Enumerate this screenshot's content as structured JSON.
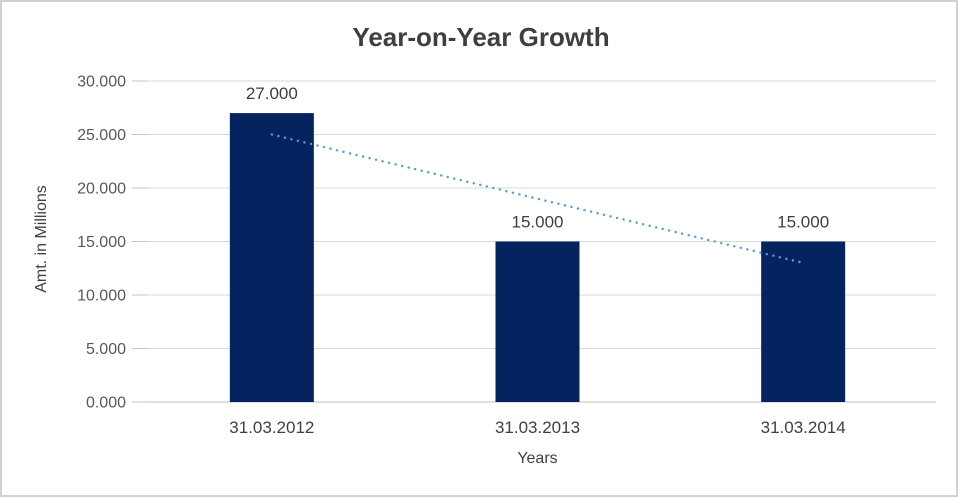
{
  "chart_data": {
    "type": "bar",
    "title": "Year-on-Year Growth",
    "xlabel": "Years",
    "ylabel": "Amt. in Millions",
    "categories": [
      "31.03.2012",
      "31.03.2013",
      "31.03.2014"
    ],
    "values": [
      27,
      15,
      15
    ],
    "data_labels": [
      "27.000",
      "15.000",
      "15.000"
    ],
    "ylim": [
      0,
      30
    ],
    "ytick_step": 5,
    "ytick_labels": [
      "0.000",
      "5.000",
      "10.000",
      "15.000",
      "20.000",
      "25.000",
      "30.000"
    ],
    "grid": true,
    "legend": false,
    "trendline": {
      "type": "linear",
      "style": "dotted",
      "values": [
        25,
        19,
        13
      ]
    }
  },
  "style": {
    "bar_color": "#04235f",
    "trendline_color": "#5b9bd5",
    "gridline_color": "#d9d9d9",
    "axis_line_color": "#bfbfbf",
    "tick_mark_color": "#c6c6c6",
    "title_color": "#3f3f3f",
    "tick_label_color": "#595959",
    "data_label_color": "#404040",
    "category_label_color": "#404040"
  }
}
